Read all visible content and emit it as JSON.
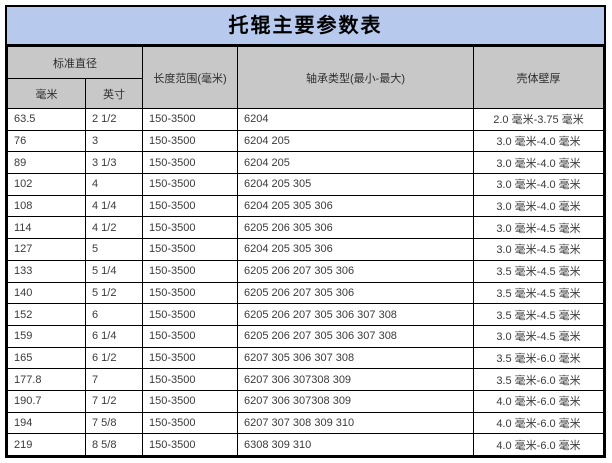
{
  "title": "托辊主要参数表",
  "colors": {
    "title_bg": "#b7c9ec",
    "header_bg": "#c8c8c8",
    "border": "#000000",
    "text": "#3a3a3a"
  },
  "table": {
    "header": {
      "group_diameter": "标准直径",
      "col_mm": "毫米",
      "col_inch": "英寸",
      "col_length": "长度范围(毫米)",
      "col_bearing": "轴承类型(最小-最大)",
      "col_wall": "壳体壁厚"
    },
    "rows": [
      {
        "mm": "63.5",
        "inch": "2 1/2",
        "length": "150-3500",
        "bearing": "6204",
        "wall": "2.0 毫米-3.75 毫米"
      },
      {
        "mm": "76",
        "inch": "3",
        "length": "150-3500",
        "bearing": "6204 205",
        "wall": "3.0 毫米-4.0 毫米"
      },
      {
        "mm": "89",
        "inch": "3 1/3",
        "length": "150-3500",
        "bearing": "6204 205",
        "wall": "3.0 毫米-4.0 毫米"
      },
      {
        "mm": "102",
        "inch": "4",
        "length": "150-3500",
        "bearing": "6204 205 305",
        "wall": "3.0 毫米-4.0 毫米"
      },
      {
        "mm": "108",
        "inch": "4 1/4",
        "length": "150-3500",
        "bearing": "6204 205 305 306",
        "wall": "3.0 毫米-4.0 毫米"
      },
      {
        "mm": "114",
        "inch": "4 1/2",
        "length": "150-3500",
        "bearing": "6205 206 305 306",
        "wall": "3.0 毫米-4.5 毫米"
      },
      {
        "mm": "127",
        "inch": "5",
        "length": "150-3500",
        "bearing": "6204 205 305 306",
        "wall": "3.0 毫米-4.5 毫米"
      },
      {
        "mm": "133",
        "inch": "5 1/4",
        "length": "150-3500",
        "bearing": "6205 206 207 305 306",
        "wall": "3.5 毫米-4.5 毫米"
      },
      {
        "mm": "140",
        "inch": "5 1/2",
        "length": "150-3500",
        "bearing": "6205 206 207 305 306",
        "wall": "3.5 毫米-4.5 毫米"
      },
      {
        "mm": "152",
        "inch": "6",
        "length": "150-3500",
        "bearing": "6205 206 207 305 306 307 308",
        "wall": "3.5 毫米-4.5 毫米"
      },
      {
        "mm": "159",
        "inch": "6 1/4",
        "length": "150-3500",
        "bearing": "6205 206 207 305 306 307 308",
        "wall": "3.0 毫米-4.5 毫米"
      },
      {
        "mm": "165",
        "inch": "6 1/2",
        "length": "150-3500",
        "bearing": "6207 305 306 307 308",
        "wall": "3.5 毫米-6.0 毫米"
      },
      {
        "mm": "177.8",
        "inch": "7",
        "length": "150-3500",
        "bearing": "6207 306 307308 309",
        "wall": "3.5 毫米-6.0 毫米"
      },
      {
        "mm": "190.7",
        "inch": "7 1/2",
        "length": "150-3500",
        "bearing": "6207 306 307308 309",
        "wall": "4.0 毫米-6.0 毫米"
      },
      {
        "mm": "194",
        "inch": "7 5/8",
        "length": "150-3500",
        "bearing": "6207 307 308 309 310",
        "wall": "4.0 毫米-6.0 毫米"
      },
      {
        "mm": "219",
        "inch": "8 5/8",
        "length": "150-3500",
        "bearing": "6308 309 310",
        "wall": "4.0 毫米-6.0 毫米"
      }
    ]
  }
}
